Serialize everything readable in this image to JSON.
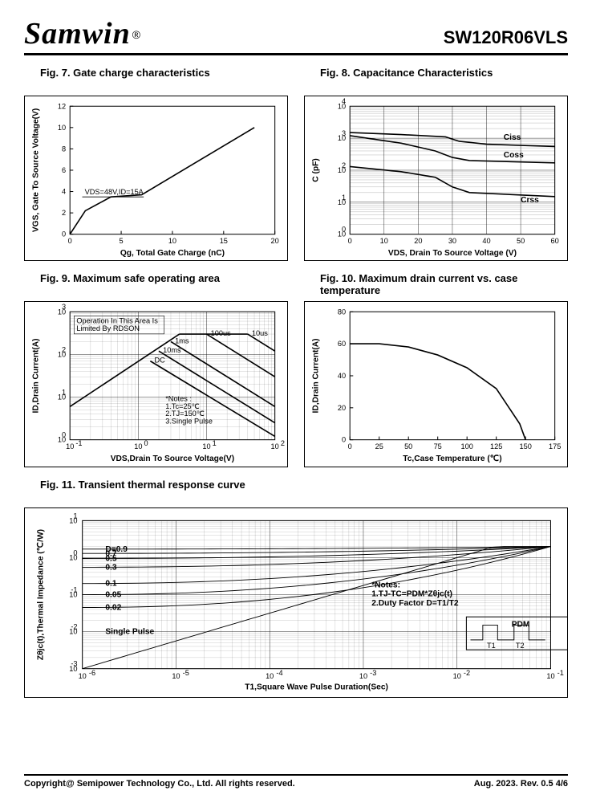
{
  "header": {
    "brand": "Samwin",
    "reg": "®",
    "part": "SW120R06VLS"
  },
  "footer": {
    "copyright": "Copyright@ Semipower Technology Co., Ltd. All rights reserved.",
    "rev": "Aug. 2023. Rev. 0.5   4/6"
  },
  "fig7": {
    "title": "Fig. 7. Gate charge characteristics",
    "type": "line",
    "xlabel": "Qg, Total Gate Charge (nC)",
    "ylabel": "VGS, Gate To Source Voltage(V)",
    "xlim": [
      0,
      20
    ],
    "xticks": [
      0,
      5,
      10,
      15,
      20
    ],
    "ylim": [
      0,
      12
    ],
    "yticks": [
      0,
      2,
      4,
      6,
      8,
      10,
      12
    ],
    "condition": "VDS=48V,ID=15A",
    "series": [
      {
        "pts": [
          [
            0,
            0
          ],
          [
            1.5,
            2.2
          ],
          [
            4,
            3.5
          ],
          [
            7,
            3.7
          ],
          [
            18,
            10
          ]
        ]
      }
    ],
    "colors": {
      "line": "#000000",
      "axis": "#000000",
      "bg": "#ffffff"
    }
  },
  "fig8": {
    "title": "Fig. 8. Capacitance Characteristics",
    "type": "line-logY",
    "xlabel": "VDS, Drain To Source Voltage (V)",
    "ylabel": "C (pF)",
    "xlim": [
      0,
      60
    ],
    "xticks": [
      0,
      10,
      20,
      30,
      40,
      50,
      60
    ],
    "ylim": [
      1,
      10000
    ],
    "ydecades": [
      0,
      1,
      2,
      3,
      4
    ],
    "series": [
      {
        "name": "Ciss",
        "pts": [
          [
            0,
            1500
          ],
          [
            15,
            1300
          ],
          [
            28,
            1100
          ],
          [
            32,
            800
          ],
          [
            40,
            650
          ],
          [
            60,
            550
          ]
        ]
      },
      {
        "name": "Coss",
        "pts": [
          [
            0,
            130
          ],
          [
            15,
            90
          ],
          [
            25,
            60
          ],
          [
            30,
            30
          ],
          [
            35,
            20
          ],
          [
            60,
            15
          ]
        ]
      },
      {
        "name": "Crss",
        "pts": [
          [
            0,
            1200
          ],
          [
            15,
            700
          ],
          [
            25,
            400
          ],
          [
            30,
            250
          ],
          [
            35,
            200
          ],
          [
            60,
            170
          ]
        ]
      }
    ],
    "label_pos": {
      "Ciss": [
        45,
        900
      ],
      "Coss": [
        45,
        250
      ],
      "Crss": [
        50,
        10
      ]
    },
    "colors": {
      "line": "#000000",
      "grid": "#000000",
      "bg": "#ffffff"
    }
  },
  "fig9": {
    "title": "Fig. 9. Maximum safe operating area",
    "type": "loglog",
    "xlabel": "VDS,Drain To Source Voltage(V)",
    "ylabel": "ID,Drain Current(A)",
    "xlim": [
      0.1,
      100
    ],
    "xdecades": [
      -1,
      0,
      1,
      2
    ],
    "ylim": [
      1,
      1000
    ],
    "ydecades": [
      0,
      1,
      2,
      3
    ],
    "note_box": "Operation In This Area Is\nLimited By RDSON",
    "notes": "*Notes :\n1.Tc=25℃\n2.TJ=150℃\n3.Single Pulse",
    "durations": [
      "10us",
      "100us",
      "1ms",
      "10ms",
      "DC"
    ],
    "rds_line": [
      [
        0.1,
        6
      ],
      [
        4,
        300
      ]
    ],
    "ilim_line": [
      [
        4,
        300
      ],
      [
        40,
        300
      ]
    ],
    "pulse_curves": [
      {
        "name": "10us",
        "pts": [
          [
            40,
            300
          ],
          [
            100,
            120
          ]
        ]
      },
      {
        "name": "100us",
        "pts": [
          [
            10,
            300
          ],
          [
            100,
            30
          ]
        ]
      },
      {
        "name": "1ms",
        "pts": [
          [
            3,
            200
          ],
          [
            100,
            6
          ]
        ]
      },
      {
        "name": "10ms",
        "pts": [
          [
            2,
            120
          ],
          [
            100,
            2.5
          ]
        ]
      },
      {
        "name": "DC",
        "pts": [
          [
            1.5,
            70
          ],
          [
            100,
            1.2
          ]
        ]
      }
    ],
    "colors": {
      "line": "#000000",
      "grid": "#000000"
    }
  },
  "fig10": {
    "title": "Fig. 10. Maximum drain current vs. case temperature",
    "type": "line",
    "xlabel": "Tc,Case Temperature (℃)",
    "ylabel": "ID,Drain Current(A)",
    "xlim": [
      0,
      175
    ],
    "xticks": [
      0,
      25,
      50,
      75,
      100,
      125,
      150,
      175
    ],
    "ylim": [
      0,
      80
    ],
    "yticks": [
      0,
      20,
      40,
      60,
      80
    ],
    "series": [
      {
        "pts": [
          [
            0,
            60
          ],
          [
            25,
            60
          ],
          [
            50,
            58
          ],
          [
            75,
            53
          ],
          [
            100,
            45
          ],
          [
            125,
            32
          ],
          [
            145,
            10
          ],
          [
            150,
            0
          ]
        ]
      }
    ],
    "colors": {
      "line": "#000000"
    }
  },
  "fig11": {
    "title": "Fig. 11. Transient thermal response curve",
    "type": "loglog",
    "xlabel": "T1,Square Wave Pulse Duration(Sec)",
    "ylabel": "Zθjc(t),Thermal Impedance (℃/W)",
    "xlim_dec": [
      -6,
      -1
    ],
    "ylim_dec": [
      -3,
      1
    ],
    "duty": [
      "D=0.9",
      "0.7",
      "0.5",
      "0.3",
      "0.1",
      "0.05",
      "0.02",
      "Single Pulse"
    ],
    "duty_start_vals": [
      1.7,
      1.3,
      0.95,
      0.55,
      0.2,
      0.1,
      0.045,
      0.001
    ],
    "notes": "*Notes:\n1.TJ-TC=PDM*Zθjc(t)\n2.Duty Factor D=T1/T2",
    "pulse_label": "PDM",
    "colors": {
      "line": "#000000",
      "grid": "#000000"
    }
  }
}
